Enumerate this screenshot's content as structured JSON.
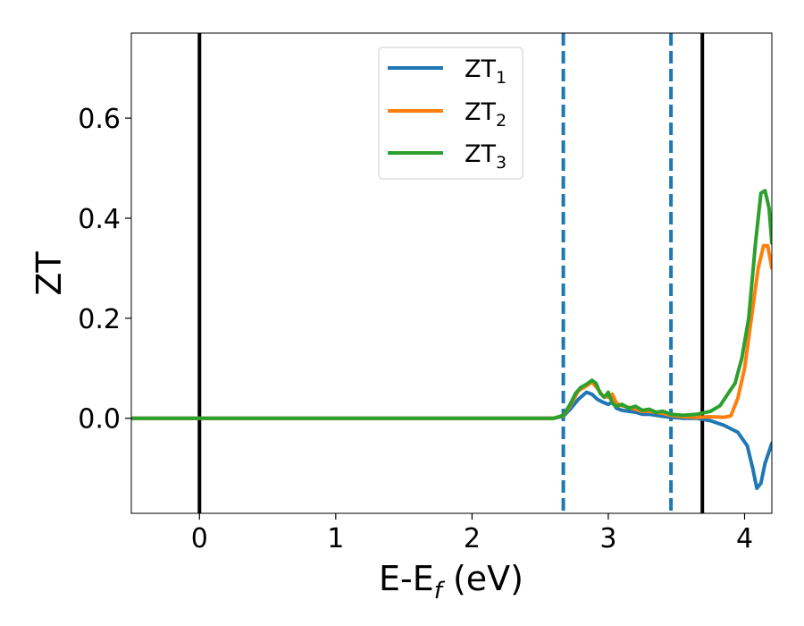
{
  "chart_data": {
    "type": "line",
    "xlabel_main": "E-E",
    "xlabel_sub": "f",
    "xlabel_tail": " (eV)",
    "ylabel": "ZT",
    "xlim": [
      -0.5,
      4.2
    ],
    "ylim": [
      -0.19,
      0.77
    ],
    "xticks": [
      0,
      1,
      2,
      3,
      4
    ],
    "yticks": [
      0.0,
      0.2,
      0.4,
      0.6
    ],
    "xtick_labels": [
      "0",
      "1",
      "2",
      "3",
      "4"
    ],
    "ytick_labels": [
      "0.0",
      "0.2",
      "0.4",
      "0.6"
    ],
    "grid": false,
    "legend_position": "top-center",
    "vertical_lines": [
      {
        "x": 0.0,
        "style": "solid",
        "color": "#000000"
      },
      {
        "x": 2.67,
        "style": "dashed",
        "color": "#1f77b4"
      },
      {
        "x": 3.46,
        "style": "dashed",
        "color": "#1f77b4"
      },
      {
        "x": 3.69,
        "style": "solid",
        "color": "#000000"
      }
    ],
    "series": [
      {
        "name_main": "ZT",
        "name_sub": "1",
        "color": "#1f77b4",
        "x": [
          -0.5,
          2.6,
          2.67,
          2.72,
          2.78,
          2.84,
          2.88,
          2.92,
          2.96,
          3.0,
          3.03,
          3.06,
          3.1,
          3.15,
          3.2,
          3.25,
          3.3,
          3.35,
          3.4,
          3.46,
          3.55,
          3.65,
          3.75,
          3.85,
          3.95,
          4.02,
          4.06,
          4.09,
          4.12,
          4.15,
          4.2
        ],
        "y": [
          0.0,
          0.0,
          0.004,
          0.018,
          0.038,
          0.052,
          0.048,
          0.038,
          0.032,
          0.028,
          0.032,
          0.02,
          0.016,
          0.014,
          0.012,
          0.008,
          0.008,
          0.006,
          0.004,
          0.002,
          0.0,
          0.0,
          -0.005,
          -0.014,
          -0.028,
          -0.055,
          -0.1,
          -0.14,
          -0.13,
          -0.09,
          -0.05
        ]
      },
      {
        "name_main": "ZT",
        "name_sub": "2",
        "color": "#ff7f0e",
        "x": [
          -0.5,
          2.6,
          2.67,
          2.72,
          2.78,
          2.84,
          2.88,
          2.92,
          2.96,
          3.0,
          3.03,
          3.06,
          3.1,
          3.15,
          3.2,
          3.25,
          3.3,
          3.35,
          3.4,
          3.46,
          3.55,
          3.65,
          3.75,
          3.85,
          3.9,
          3.95,
          4.0,
          4.05,
          4.1,
          4.14,
          4.17,
          4.2
        ],
        "y": [
          0.0,
          0.0,
          0.005,
          0.025,
          0.055,
          0.065,
          0.072,
          0.06,
          0.045,
          0.042,
          0.048,
          0.03,
          0.025,
          0.022,
          0.018,
          0.014,
          0.014,
          0.012,
          0.01,
          0.006,
          0.003,
          0.002,
          0.003,
          0.002,
          0.005,
          0.04,
          0.1,
          0.2,
          0.3,
          0.345,
          0.345,
          0.3
        ]
      },
      {
        "name_main": "ZT",
        "name_sub": "3",
        "color": "#2ca02c",
        "x": [
          -0.5,
          2.6,
          2.67,
          2.72,
          2.76,
          2.8,
          2.84,
          2.88,
          2.91,
          2.94,
          2.97,
          3.0,
          3.03,
          3.06,
          3.1,
          3.15,
          3.2,
          3.25,
          3.3,
          3.35,
          3.4,
          3.46,
          3.55,
          3.65,
          3.75,
          3.82,
          3.88,
          3.93,
          3.98,
          4.03,
          4.08,
          4.12,
          4.15,
          4.18,
          4.2
        ],
        "y": [
          0.0,
          0.0,
          0.006,
          0.028,
          0.05,
          0.062,
          0.068,
          0.076,
          0.07,
          0.05,
          0.042,
          0.052,
          0.03,
          0.024,
          0.028,
          0.02,
          0.024,
          0.016,
          0.018,
          0.012,
          0.014,
          0.008,
          0.006,
          0.008,
          0.014,
          0.025,
          0.05,
          0.07,
          0.12,
          0.2,
          0.35,
          0.45,
          0.455,
          0.42,
          0.35
        ]
      }
    ]
  }
}
